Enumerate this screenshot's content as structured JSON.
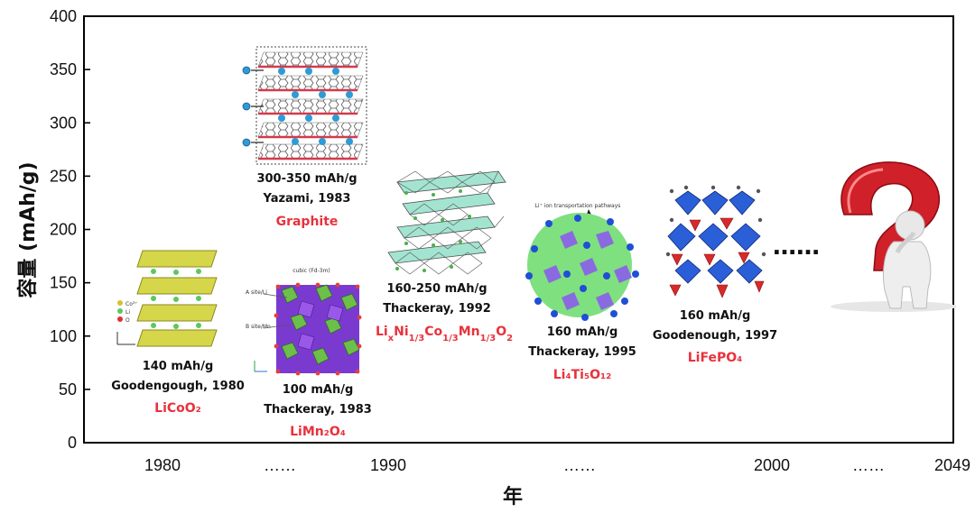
{
  "chart_data": {
    "type": "scatter",
    "title": "",
    "xlabel": "年",
    "ylabel": "容量 (mAh/g)",
    "ylim": [
      0,
      400
    ],
    "y_ticks": [
      "0",
      "50",
      "100",
      "150",
      "200",
      "250",
      "300",
      "350",
      "400"
    ],
    "x_ticks": [
      "1980",
      "……",
      "1990",
      "……",
      "2000",
      "……",
      "2049"
    ],
    "grid": false,
    "annotations": [
      {
        "key": "licoo2",
        "value": "140 mAh/g",
        "author": "Goodengough, 1980",
        "name": "LiCoO₂",
        "year": 1980,
        "capacity": 140
      },
      {
        "key": "limn2o4",
        "value": "100 mAh/g",
        "author": "Thackeray, 1983",
        "name": "LiMn₂O₄",
        "year": 1983,
        "capacity": 100
      },
      {
        "key": "graphite",
        "value": "300-350 mAh/g",
        "author": "Yazami, 1983",
        "name": "Graphite",
        "year": 1983,
        "capacity": 325
      },
      {
        "key": "nmc",
        "value": "160-250 mAh/g",
        "author": "Thackeray, 1992",
        "name": "LixNi1/3Co1/3Mn1/3O2",
        "year": 1992,
        "capacity": 205
      },
      {
        "key": "lto",
        "value": "160 mAh/g",
        "author": "Thackeray, 1995",
        "name": "Li₄Ti₅O₁₂",
        "year": 1995,
        "capacity": 160
      },
      {
        "key": "lfp",
        "value": "160 mAh/g",
        "author": "Goodenough, 1997",
        "name": "LiFePO₄",
        "year": 1997,
        "capacity": 160
      }
    ],
    "continuation": "……",
    "inset_labels": {
      "licoo2_legend": [
        "Co³⁺",
        "Li",
        "O"
      ],
      "limn2o4_title": "cubic (Fd-3m)",
      "limn2o4_sites": [
        "A site/Li",
        "B site/Mn"
      ],
      "lto_caption": "Li⁺ ion transportation pathways"
    }
  }
}
